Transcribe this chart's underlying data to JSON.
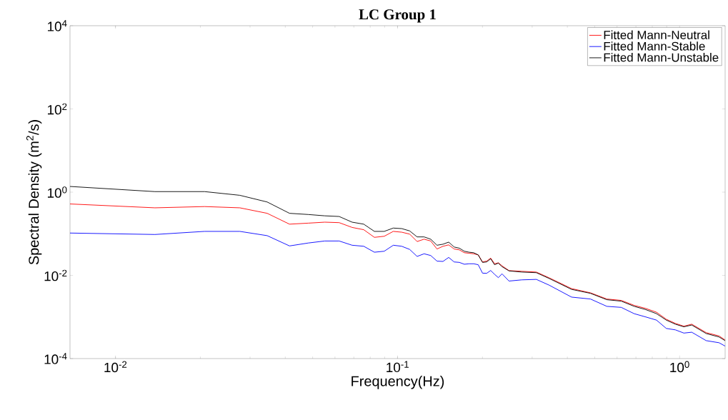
{
  "chart_data": {
    "type": "line",
    "title": "LC Group 1",
    "xlabel": "Frequency(Hz)",
    "ylabel": "Spectral Density (m$^{2}$/s)",
    "log": "xy",
    "legend": "top right",
    "grid": false,
    "xlim": [
      0.0069,
      1.45
    ],
    "ylim": [
      0.0001,
      10000
    ],
    "xticks": [
      {
        "value": 0.01,
        "label": "10$^{-2}$"
      },
      {
        "value": 0.1,
        "label": "10$^{-1}$"
      },
      {
        "value": 1,
        "label": "10$^{0}$"
      }
    ],
    "yticks": [
      {
        "value": 0.0001,
        "label": "10$^{-4}$"
      },
      {
        "value": 0.01,
        "label": "10$^{-2}$"
      },
      {
        "value": 1,
        "label": "10$^{0}$"
      },
      {
        "value": 100,
        "label": "10$^{2}$"
      },
      {
        "value": 10000,
        "label": "10$^{4}$"
      }
    ],
    "x": [
      0.0069,
      0.0138,
      0.0207,
      0.0276,
      0.0345,
      0.0414,
      0.0483,
      0.0552,
      0.0621,
      0.069,
      0.0759,
      0.0828,
      0.0897,
      0.0966,
      0.1035,
      0.1104,
      0.1173,
      0.1242,
      0.1311,
      0.138,
      0.1449,
      0.1518,
      0.1587,
      0.1656,
      0.1725,
      0.1794,
      0.1863,
      0.1932,
      0.2001,
      0.207,
      0.2139,
      0.2208,
      0.2277,
      0.2346,
      0.2484,
      0.276,
      0.3105,
      0.345,
      0.414,
      0.483,
      0.552,
      0.621,
      0.69,
      0.759,
      0.828,
      0.897,
      0.966,
      1.035,
      1.104,
      1.242,
      1.38,
      1.449
    ],
    "series": [
      {
        "name": "Fitted Mann-Neutral",
        "color": "#ff0000",
        "values": [
          0.52,
          0.42,
          0.45,
          0.42,
          0.31,
          0.17,
          0.18,
          0.19,
          0.185,
          0.142,
          0.125,
          0.082,
          0.087,
          0.114,
          0.109,
          0.098,
          0.065,
          0.074,
          0.067,
          0.043,
          0.05,
          0.054,
          0.043,
          0.041,
          0.035,
          0.034,
          0.033,
          0.031,
          0.021,
          0.022,
          0.026,
          0.019,
          0.02,
          0.017,
          0.013,
          0.0125,
          0.012,
          0.0087,
          0.0048,
          0.0038,
          0.0027,
          0.0025,
          0.0019,
          0.0016,
          0.0013,
          0.00088,
          0.0007,
          0.0006,
          0.00067,
          0.00042,
          0.00035,
          0.00028
        ]
      },
      {
        "name": "Fitted Mann-Stable",
        "color": "#0000ff",
        "values": [
          0.104,
          0.096,
          0.114,
          0.114,
          0.09,
          0.051,
          0.06,
          0.067,
          0.067,
          0.053,
          0.05,
          0.036,
          0.038,
          0.053,
          0.05,
          0.042,
          0.0285,
          0.033,
          0.03,
          0.022,
          0.0216,
          0.027,
          0.021,
          0.0205,
          0.0185,
          0.019,
          0.019,
          0.018,
          0.0113,
          0.0112,
          0.0131,
          0.0106,
          0.0088,
          0.0109,
          0.0073,
          0.0078,
          0.008,
          0.0058,
          0.003,
          0.0027,
          0.0018,
          0.0017,
          0.0012,
          0.001,
          0.00084,
          0.00053,
          0.00049,
          0.00041,
          0.00043,
          0.00027,
          0.00024,
          0.0002
        ]
      },
      {
        "name": "Fitted Mann-Unstable",
        "color": "#000000",
        "values": [
          1.37,
          1.03,
          1.03,
          0.84,
          0.58,
          0.31,
          0.29,
          0.27,
          0.26,
          0.19,
          0.17,
          0.114,
          0.114,
          0.137,
          0.133,
          0.117,
          0.084,
          0.084,
          0.074,
          0.053,
          0.056,
          0.063,
          0.048,
          0.045,
          0.038,
          0.036,
          0.035,
          0.031,
          0.0205,
          0.021,
          0.025,
          0.018,
          0.0197,
          0.0162,
          0.0128,
          0.012,
          0.0116,
          0.0084,
          0.0046,
          0.0037,
          0.0026,
          0.0024,
          0.0018,
          0.0015,
          0.0012,
          0.00084,
          0.00067,
          0.00058,
          0.00064,
          0.0004,
          0.00033,
          0.00027
        ]
      }
    ]
  }
}
